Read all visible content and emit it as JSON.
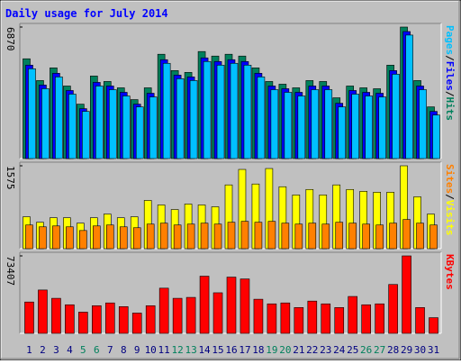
{
  "title": "Daily usage for July 2014",
  "legend_separator": "/",
  "chart_data": [
    {
      "type": "bar",
      "ylim": [
        0,
        6870
      ],
      "yticks": [
        6870
      ],
      "series": [
        {
          "name": "Hits",
          "color": "#00805c",
          "values": [
            5212,
            4075,
            4738,
            3790,
            2843,
            4312,
            4027,
            3696,
            3080,
            3696,
            5449,
            4596,
            4501,
            5591,
            5354,
            5449,
            5354,
            4738,
            4027,
            3885,
            3696,
            4075,
            4027,
            3175,
            3790,
            3696,
            3648,
            4880,
            6870,
            4075,
            2701
          ]
        },
        {
          "name": "Files",
          "color": "#0000ff",
          "values": [
            4880,
            3840,
            4455,
            3555,
            2607,
            3980,
            3790,
            3460,
            2843,
            3412,
            5165,
            4360,
            4265,
            5260,
            5070,
            5165,
            5070,
            4455,
            3790,
            3650,
            3460,
            3790,
            3790,
            2890,
            3555,
            3460,
            3412,
            4596,
            6635,
            3790,
            2465
          ]
        },
        {
          "name": "Pages",
          "color": "#00c0ff",
          "values": [
            4690,
            3650,
            4265,
            3365,
            2465,
            3790,
            3600,
            3270,
            2700,
            3220,
            4975,
            4170,
            4075,
            5070,
            4880,
            4975,
            4880,
            4265,
            3600,
            3460,
            3270,
            3600,
            3600,
            2700,
            3365,
            3270,
            3220,
            4405,
            6450,
            3600,
            2275
          ]
        }
      ]
    },
    {
      "type": "bar",
      "ylim": [
        0,
        1575
      ],
      "yticks": [
        1575
      ],
      "series": [
        {
          "name": "Visits",
          "color": "#ffff00",
          "values": [
            606,
            502,
            588,
            588,
            485,
            588,
            658,
            588,
            606,
            917,
            831,
            744,
            848,
            831,
            796,
            1212,
            1506,
            1229,
            1523,
            1177,
            1021,
            1125,
            1021,
            1212,
            1125,
            1090,
            1073,
            1073,
            1575,
            986,
            658
          ]
        },
        {
          "name": "Sites",
          "color": "#ff8000",
          "values": [
            450,
            415,
            432,
            415,
            345,
            432,
            450,
            415,
            398,
            467,
            485,
            450,
            467,
            485,
            467,
            502,
            519,
            502,
            519,
            485,
            467,
            485,
            467,
            502,
            485,
            467,
            450,
            485,
            554,
            485,
            450
          ]
        }
      ]
    },
    {
      "type": "bar",
      "ylim": [
        0,
        73407
      ],
      "yticks": [
        73407
      ],
      "categories": [
        "1",
        "2",
        "3",
        "4",
        "5",
        "6",
        "7",
        "8",
        "9",
        "10",
        "11",
        "12",
        "13",
        "14",
        "15",
        "16",
        "17",
        "18",
        "19",
        "20",
        "21",
        "22",
        "23",
        "24",
        "25",
        "26",
        "27",
        "28",
        "29",
        "30",
        "31"
      ],
      "category_colors": [
        "#000080",
        "#000080",
        "#000080",
        "#000080",
        "#00805c",
        "#00805c",
        "#000080",
        "#000080",
        "#000080",
        "#000080",
        "#000080",
        "#00805c",
        "#00805c",
        "#000080",
        "#000080",
        "#000080",
        "#000080",
        "#000080",
        "#00805c",
        "#00805c",
        "#000080",
        "#000080",
        "#000080",
        "#000080",
        "#000080",
        "#00805c",
        "#00805c",
        "#000080",
        "#000080",
        "#000080",
        "#000080"
      ],
      "series": [
        {
          "name": "KBytes",
          "color": "#ff0000",
          "values": [
            29713,
            41074,
            33208,
            27091,
            20100,
            26217,
            28839,
            25343,
            19226,
            26217,
            42822,
            33208,
            34082,
            54182,
            38452,
            53308,
            51560,
            32334,
            27965,
            28839,
            24469,
            30587,
            27965,
            24469,
            34956,
            27091,
            27965,
            46318,
            73407,
            24469,
            14856
          ]
        }
      ]
    }
  ]
}
